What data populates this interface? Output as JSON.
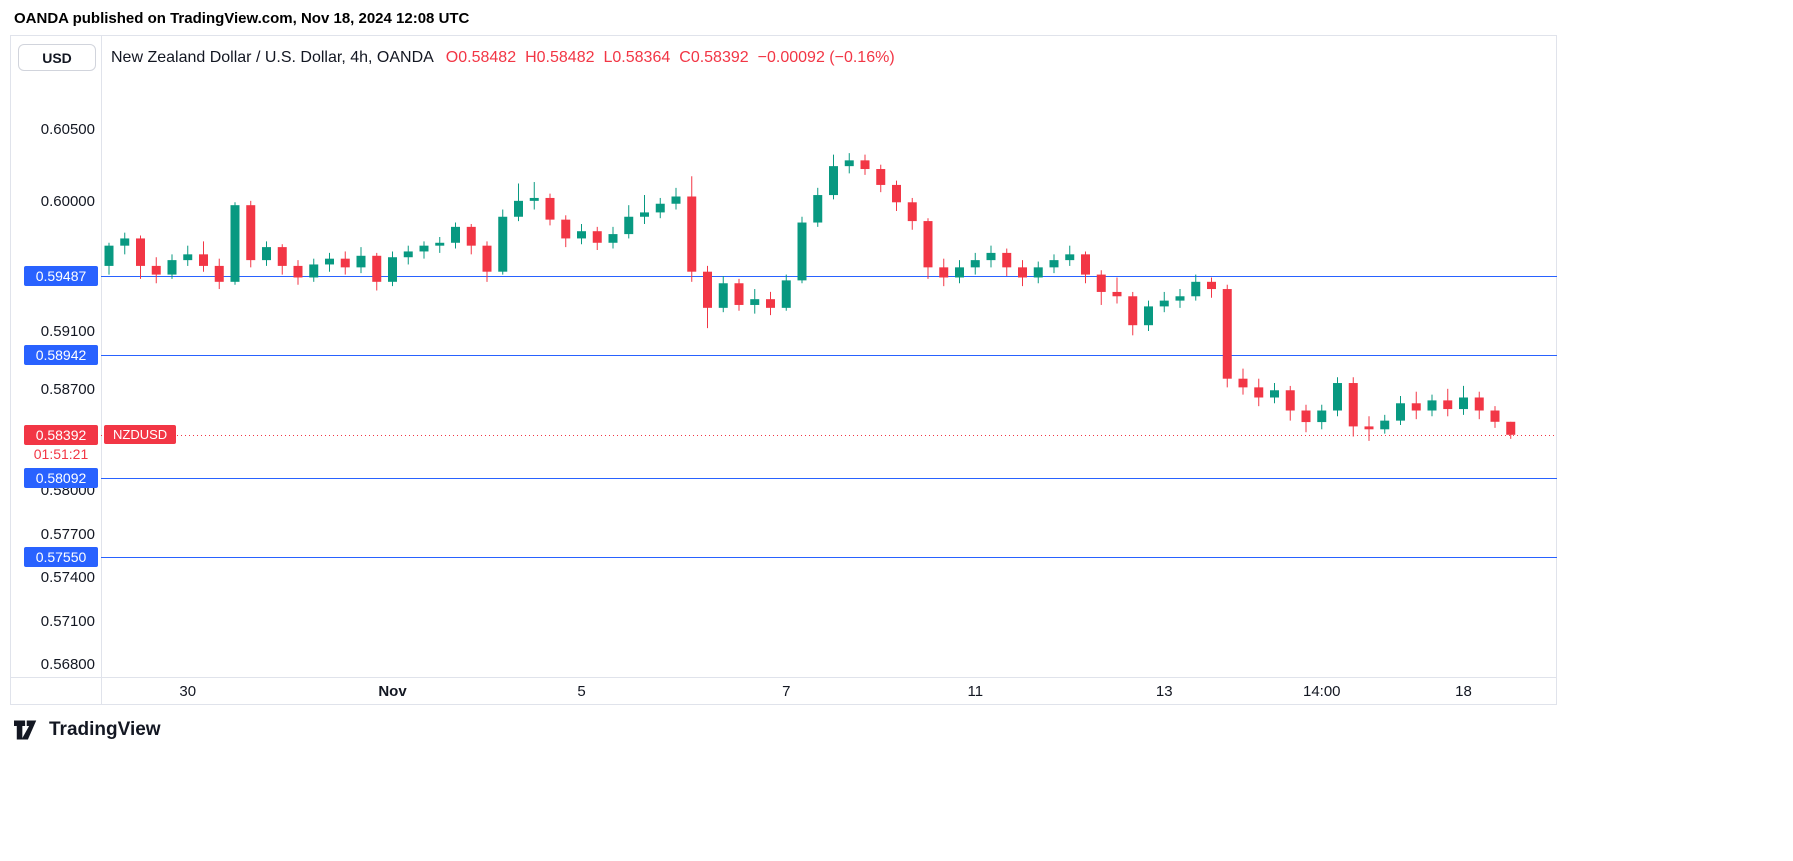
{
  "attribution": "OANDA published on TradingView.com, Nov 18, 2024 12:08 UTC",
  "footer": {
    "brand": "TradingView"
  },
  "chart": {
    "currency_button": "USD",
    "symbol_title": "New Zealand Dollar / U.S. Dollar, 4h, OANDA",
    "legend": {
      "o_label": "O",
      "o": "0.58482",
      "h_label": "H",
      "h": "0.58482",
      "l_label": "L",
      "l": "0.58364",
      "c_label": "C",
      "c": "0.58392",
      "change": "−0.00092 (−0.16%)"
    }
  },
  "colors": {
    "up": "#089981",
    "down": "#f23645",
    "level": "#2962ff",
    "text": "#131722",
    "separator": "#e0e3eb"
  },
  "chart_data": {
    "type": "candlestick",
    "title": "New Zealand Dollar / U.S. Dollar, 4h, OANDA",
    "symbol": "NZDUSD",
    "timeframe": "4h",
    "exchange": "OANDA",
    "last_bar": {
      "open": 0.58482,
      "high": 0.58482,
      "low": 0.58364,
      "close": 0.58392,
      "change": -0.00092,
      "change_pct": -0.16
    },
    "price_range": [
      0.56717,
      0.6115
    ],
    "grid": false,
    "price_scale_side": "left",
    "y_ticks": [
      {
        "value": 0.605,
        "label": "0.60500"
      },
      {
        "value": 0.6,
        "label": "0.60000"
      },
      {
        "value": 0.591,
        "label": "0.59100"
      },
      {
        "value": 0.587,
        "label": "0.58700"
      },
      {
        "value": 0.58,
        "label": "0.58000"
      },
      {
        "value": 0.577,
        "label": "0.57700"
      },
      {
        "value": 0.574,
        "label": "0.57400"
      },
      {
        "value": 0.571,
        "label": "0.57100"
      },
      {
        "value": 0.568,
        "label": "0.56800"
      }
    ],
    "levels": [
      {
        "value": 0.59487,
        "label": "0.59487"
      },
      {
        "value": 0.58942,
        "label": "0.58942"
      },
      {
        "value": 0.58092,
        "label": "0.58092"
      },
      {
        "value": 0.5755,
        "label": "0.57550"
      }
    ],
    "last_price_line": {
      "value": 0.58392,
      "label": "0.58392",
      "countdown": "01:51:21",
      "symbol_badge": "NZDUSD"
    },
    "x_ticks": [
      {
        "index": 5,
        "label": "30"
      },
      {
        "index": 18,
        "label": "Nov",
        "bold": true
      },
      {
        "index": 30,
        "label": "5"
      },
      {
        "index": 43,
        "label": "7"
      },
      {
        "index": 55,
        "label": "11"
      },
      {
        "index": 67,
        "label": "13"
      },
      {
        "index": 77,
        "label": "14:00"
      },
      {
        "index": 86,
        "label": "18"
      }
    ],
    "layout": {
      "x_start": 8,
      "x_step": 15.75,
      "body_width": 9
    },
    "candles": [
      [
        0.5956,
        0.5972,
        0.595,
        0.597
      ],
      [
        0.597,
        0.5979,
        0.5964,
        0.5975
      ],
      [
        0.5975,
        0.5977,
        0.5947,
        0.5956
      ],
      [
        0.5956,
        0.5962,
        0.5944,
        0.595
      ],
      [
        0.595,
        0.5964,
        0.5947,
        0.596
      ],
      [
        0.596,
        0.597,
        0.5956,
        0.5964
      ],
      [
        0.5964,
        0.5973,
        0.5952,
        0.5956
      ],
      [
        0.5956,
        0.5961,
        0.594,
        0.5945
      ],
      [
        0.5945,
        0.6,
        0.5943,
        0.5998
      ],
      [
        0.5998,
        0.6001,
        0.5955,
        0.596
      ],
      [
        0.596,
        0.5973,
        0.5956,
        0.5969
      ],
      [
        0.5969,
        0.5971,
        0.595,
        0.5956
      ],
      [
        0.5956,
        0.596,
        0.5943,
        0.5948
      ],
      [
        0.5948,
        0.5961,
        0.5945,
        0.5957
      ],
      [
        0.5957,
        0.5965,
        0.5952,
        0.5961
      ],
      [
        0.5961,
        0.5966,
        0.595,
        0.5955
      ],
      [
        0.5955,
        0.5969,
        0.5951,
        0.5963
      ],
      [
        0.5963,
        0.5965,
        0.5939,
        0.5945
      ],
      [
        0.5945,
        0.5966,
        0.5942,
        0.5962
      ],
      [
        0.5962,
        0.597,
        0.5957,
        0.5966
      ],
      [
        0.5966,
        0.5973,
        0.5961,
        0.597
      ],
      [
        0.597,
        0.5976,
        0.5965,
        0.5972
      ],
      [
        0.5972,
        0.5986,
        0.5968,
        0.5983
      ],
      [
        0.5983,
        0.5985,
        0.5964,
        0.597
      ],
      [
        0.597,
        0.5973,
        0.5945,
        0.5952
      ],
      [
        0.5952,
        0.5995,
        0.595,
        0.599
      ],
      [
        0.599,
        0.6013,
        0.5987,
        0.6001
      ],
      [
        0.6001,
        0.6014,
        0.5995,
        0.6003
      ],
      [
        0.6003,
        0.6006,
        0.5984,
        0.5988
      ],
      [
        0.5988,
        0.5991,
        0.5969,
        0.5975
      ],
      [
        0.5975,
        0.5985,
        0.5971,
        0.598
      ],
      [
        0.598,
        0.5983,
        0.5967,
        0.5972
      ],
      [
        0.5972,
        0.5983,
        0.5968,
        0.5978
      ],
      [
        0.5978,
        0.5998,
        0.5975,
        0.599
      ],
      [
        0.599,
        0.6005,
        0.5985,
        0.5993
      ],
      [
        0.5993,
        0.6003,
        0.5989,
        0.5999
      ],
      [
        0.5999,
        0.601,
        0.5995,
        0.6004
      ],
      [
        0.6004,
        0.6018,
        0.5945,
        0.5952
      ],
      [
        0.5952,
        0.5956,
        0.5913,
        0.5927
      ],
      [
        0.5927,
        0.5949,
        0.5924,
        0.5944
      ],
      [
        0.5944,
        0.5947,
        0.5925,
        0.5929
      ],
      [
        0.5929,
        0.594,
        0.5923,
        0.5933
      ],
      [
        0.5933,
        0.5938,
        0.5922,
        0.5927
      ],
      [
        0.5927,
        0.595,
        0.5925,
        0.5946
      ],
      [
        0.5946,
        0.599,
        0.5944,
        0.5986
      ],
      [
        0.5986,
        0.601,
        0.5983,
        0.6005
      ],
      [
        0.6005,
        0.6033,
        0.6002,
        0.6025
      ],
      [
        0.6025,
        0.6034,
        0.602,
        0.6029
      ],
      [
        0.6029,
        0.6033,
        0.6019,
        0.6023
      ],
      [
        0.6023,
        0.6026,
        0.6007,
        0.6012
      ],
      [
        0.6012,
        0.6015,
        0.5994,
        0.6
      ],
      [
        0.6,
        0.6003,
        0.5981,
        0.5987
      ],
      [
        0.5987,
        0.5989,
        0.5947,
        0.5955
      ],
      [
        0.5955,
        0.5961,
        0.5942,
        0.5948
      ],
      [
        0.5948,
        0.596,
        0.5944,
        0.5955
      ],
      [
        0.5955,
        0.5965,
        0.595,
        0.596
      ],
      [
        0.596,
        0.597,
        0.5955,
        0.5965
      ],
      [
        0.5965,
        0.5968,
        0.5949,
        0.5955
      ],
      [
        0.5955,
        0.596,
        0.5942,
        0.5948
      ],
      [
        0.5948,
        0.5959,
        0.5944,
        0.5955
      ],
      [
        0.5955,
        0.5964,
        0.5951,
        0.596
      ],
      [
        0.596,
        0.597,
        0.5956,
        0.5964
      ],
      [
        0.5964,
        0.5966,
        0.5944,
        0.595
      ],
      [
        0.595,
        0.5953,
        0.5929,
        0.5938
      ],
      [
        0.5938,
        0.5948,
        0.593,
        0.5935
      ],
      [
        0.5935,
        0.5938,
        0.5908,
        0.5915
      ],
      [
        0.5915,
        0.5932,
        0.5911,
        0.5928
      ],
      [
        0.5928,
        0.5938,
        0.5924,
        0.5932
      ],
      [
        0.5932,
        0.594,
        0.5927,
        0.5935
      ],
      [
        0.5935,
        0.595,
        0.5932,
        0.5945
      ],
      [
        0.5945,
        0.5948,
        0.5934,
        0.594
      ],
      [
        0.594,
        0.5943,
        0.5872,
        0.5878
      ],
      [
        0.5878,
        0.5885,
        0.5867,
        0.5872
      ],
      [
        0.5872,
        0.5878,
        0.5859,
        0.5865
      ],
      [
        0.5865,
        0.5875,
        0.5861,
        0.587
      ],
      [
        0.587,
        0.5873,
        0.5849,
        0.5856
      ],
      [
        0.5856,
        0.586,
        0.5841,
        0.5848
      ],
      [
        0.5848,
        0.586,
        0.5843,
        0.5856
      ],
      [
        0.5856,
        0.5879,
        0.5852,
        0.5875
      ],
      [
        0.5875,
        0.5879,
        0.5838,
        0.5845
      ],
      [
        0.5845,
        0.5852,
        0.5835,
        0.5843
      ],
      [
        0.5843,
        0.5853,
        0.584,
        0.5849
      ],
      [
        0.5849,
        0.5866,
        0.5846,
        0.5861
      ],
      [
        0.5861,
        0.5869,
        0.585,
        0.5856
      ],
      [
        0.5856,
        0.5867,
        0.5852,
        0.5863
      ],
      [
        0.5863,
        0.5871,
        0.5852,
        0.5857
      ],
      [
        0.5857,
        0.5873,
        0.5853,
        0.5865
      ],
      [
        0.5865,
        0.5869,
        0.585,
        0.5856
      ],
      [
        0.5856,
        0.5859,
        0.5844,
        0.58482
      ],
      [
        0.58482,
        0.58482,
        0.58364,
        0.58392
      ]
    ]
  }
}
